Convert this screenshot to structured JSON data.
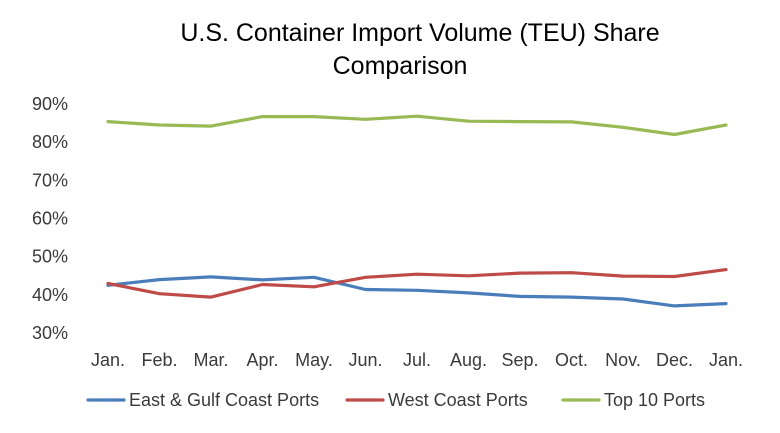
{
  "chart_data": {
    "type": "line",
    "title_lines": [
      "U.S. Container Import Volume (TEU) Share",
      "Comparison"
    ],
    "xlabel": "",
    "ylabel": "",
    "categories": [
      "Jan.",
      "Feb.",
      "Mar.",
      "Apr.",
      "May.",
      "Jun.",
      "Jul.",
      "Aug.",
      "Sep.",
      "Oct.",
      "Nov.",
      "Dec.",
      "Jan."
    ],
    "ylim": [
      30,
      90
    ],
    "yticks": [
      30,
      40,
      50,
      60,
      70,
      80,
      90
    ],
    "ytick_labels": [
      "30%",
      "40%",
      "50%",
      "60%",
      "70%",
      "80%",
      "90%"
    ],
    "grid": false,
    "legend_position": "bottom",
    "series": [
      {
        "name": "East & Gulf Coast Ports",
        "color": "#4a7ebb",
        "values": [
          42.5,
          44.0,
          44.7,
          43.9,
          44.6,
          41.4,
          41.2,
          40.5,
          39.6,
          39.4,
          38.9,
          37.1,
          37.7
        ]
      },
      {
        "name": "West Coast Ports",
        "color": "#be4b48",
        "values": [
          43.0,
          40.3,
          39.4,
          42.7,
          42.1,
          44.6,
          45.4,
          45.0,
          45.7,
          45.8,
          44.9,
          44.8,
          46.6
        ]
      },
      {
        "name": "Top 10 Ports",
        "color": "#98b954",
        "values": [
          85.4,
          84.5,
          84.2,
          86.7,
          86.7,
          86.0,
          86.8,
          85.5,
          85.4,
          85.3,
          83.9,
          82.0,
          84.5
        ]
      }
    ]
  }
}
